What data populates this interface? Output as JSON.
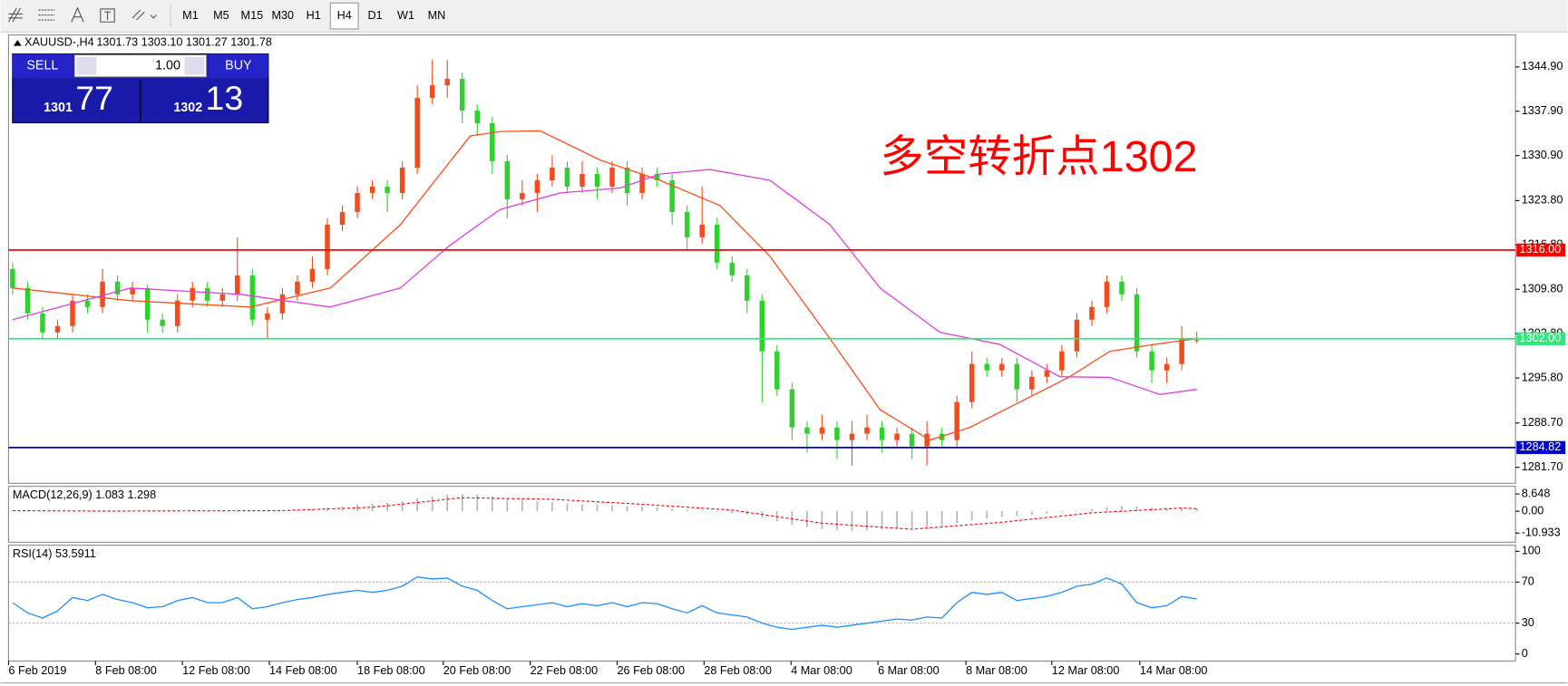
{
  "toolbar": {
    "timeframes": [
      "M1",
      "M5",
      "M15",
      "M30",
      "H1",
      "H4",
      "D1",
      "W1",
      "MN"
    ],
    "active_index": 5
  },
  "trade_panel": {
    "sell": "SELL",
    "lot": "1.00",
    "buy": "BUY",
    "bid_main": "1301",
    "bid_pips": "77",
    "ask_main": "1302",
    "ask_pips": "13"
  },
  "chart_data": [
    {
      "type": "candlestick",
      "title": "XAUUSD-,H4",
      "ohlc_text": "1301.73 1303.10 1301.27 1301.78",
      "annotation": "多空转折点1302",
      "xlim": [
        -0.27,
        100.13
      ],
      "xticks": [
        {
          "value": -0.27,
          "label": "6 Feb 2019"
        },
        {
          "value": 5.53,
          "label": "8 Feb 08:00"
        },
        {
          "value": 11.33,
          "label": "12 Feb 08:00"
        },
        {
          "value": 17.13,
          "label": "14 Feb 08:00"
        },
        {
          "value": 23,
          "label": "18 Feb 08:00"
        },
        {
          "value": 28.73,
          "label": "20 Feb 08:00"
        },
        {
          "value": 34.53,
          "label": "22 Feb 08:00"
        },
        {
          "value": 40.33,
          "label": "26 Feb 08:00"
        },
        {
          "value": 46.13,
          "label": "28 Feb 08:00"
        },
        {
          "value": 51.93,
          "label": "4 Mar 08:00"
        },
        {
          "value": 57.73,
          "label": "6 Mar 08:00"
        },
        {
          "value": 63.6,
          "label": "8 Mar 08:00"
        },
        {
          "value": 69.33,
          "label": "12 Mar 08:00"
        },
        {
          "value": 75.2,
          "label": "14 Mar 08:00"
        }
      ],
      "ylim": [
        1279.18,
        1349.94
      ],
      "yticks": [
        {
          "value": 1344.9,
          "label": "1344.90"
        },
        {
          "value": 1337.9,
          "label": "1337.90"
        },
        {
          "value": 1330.9,
          "label": "1330.90"
        },
        {
          "value": 1323.8,
          "label": "1323.80"
        },
        {
          "value": 1316.8,
          "label": "1316.80"
        },
        {
          "value": 1309.8,
          "label": "1309.80"
        },
        {
          "value": 1302.8,
          "label": "1302.80"
        },
        {
          "value": 1295.8,
          "label": "1295.80"
        },
        {
          "value": 1288.7,
          "label": "1288.70"
        },
        {
          "value": 1281.7,
          "label": "1281.70"
        }
      ],
      "up_color": "#f24b1c",
      "down_color": "#2fd12f",
      "candles": [
        [
          1313,
          1314,
          1309,
          1310
        ],
        [
          1310,
          1311,
          1305,
          1306
        ],
        [
          1306,
          1307,
          1302,
          1303
        ],
        [
          1303,
          1305,
          1302,
          1304
        ],
        [
          1304,
          1309,
          1303,
          1308
        ],
        [
          1308,
          1309,
          1306,
          1307
        ],
        [
          1307,
          1313,
          1306,
          1311
        ],
        [
          1311,
          1312,
          1308,
          1309
        ],
        [
          1309,
          1311,
          1308,
          1310
        ],
        [
          1310,
          1310.5,
          1303,
          1305
        ],
        [
          1305,
          1306,
          1303,
          1304
        ],
        [
          1304,
          1309,
          1303,
          1308
        ],
        [
          1308,
          1311,
          1307,
          1310
        ],
        [
          1310,
          1311,
          1307,
          1308
        ],
        [
          1308,
          1310,
          1307,
          1309
        ],
        [
          1309,
          1318,
          1308,
          1312
        ],
        [
          1312,
          1313,
          1304,
          1305
        ],
        [
          1305,
          1307,
          1302,
          1306
        ],
        [
          1306,
          1310,
          1305,
          1309
        ],
        [
          1309,
          1312,
          1308,
          1311
        ],
        [
          1311,
          1315,
          1310,
          1313
        ],
        [
          1313,
          1321,
          1312,
          1320
        ],
        [
          1320,
          1323,
          1319,
          1322
        ],
        [
          1322,
          1326,
          1321,
          1325
        ],
        [
          1325,
          1327,
          1324,
          1326
        ],
        [
          1326,
          1327,
          1322,
          1325
        ],
        [
          1325,
          1330,
          1324,
          1329
        ],
        [
          1329,
          1342,
          1328,
          1340
        ],
        [
          1340,
          1346,
          1339,
          1342
        ],
        [
          1342,
          1346,
          1340,
          1343
        ],
        [
          1343,
          1344,
          1336,
          1338
        ],
        [
          1338,
          1339,
          1334,
          1336
        ],
        [
          1336,
          1337,
          1328,
          1330
        ],
        [
          1330,
          1331,
          1321,
          1324
        ],
        [
          1324,
          1327,
          1323,
          1325
        ],
        [
          1325,
          1328,
          1322,
          1327
        ],
        [
          1327,
          1331,
          1326,
          1329
        ],
        [
          1329,
          1330,
          1325,
          1326
        ],
        [
          1326,
          1330,
          1325,
          1328
        ],
        [
          1328,
          1329,
          1324,
          1326
        ],
        [
          1326,
          1330,
          1325,
          1329
        ],
        [
          1329,
          1330,
          1323,
          1325
        ],
        [
          1325,
          1329,
          1324,
          1328
        ],
        [
          1328,
          1329,
          1326,
          1327
        ],
        [
          1327,
          1328,
          1320,
          1322
        ],
        [
          1322,
          1323,
          1316,
          1318
        ],
        [
          1318,
          1326,
          1317,
          1320
        ],
        [
          1320,
          1321,
          1313,
          1314
        ],
        [
          1314,
          1315,
          1311,
          1312
        ],
        [
          1312,
          1313,
          1306,
          1308
        ],
        [
          1308,
          1309,
          1292,
          1300
        ],
        [
          1300,
          1301,
          1293,
          1294
        ],
        [
          1294,
          1295,
          1286,
          1288
        ],
        [
          1288,
          1289,
          1284,
          1287
        ],
        [
          1287,
          1290,
          1286,
          1288
        ],
        [
          1288,
          1289,
          1283,
          1286
        ],
        [
          1286,
          1289,
          1282,
          1287
        ],
        [
          1287,
          1290,
          1286,
          1288
        ],
        [
          1288,
          1289,
          1284,
          1286
        ],
        [
          1286,
          1288,
          1285,
          1287
        ],
        [
          1287,
          1288,
          1283,
          1285
        ],
        [
          1285,
          1289,
          1282,
          1287
        ],
        [
          1287,
          1288,
          1285,
          1286
        ],
        [
          1286,
          1293,
          1285,
          1292
        ],
        [
          1292,
          1300,
          1291,
          1298
        ],
        [
          1298,
          1299,
          1296,
          1297
        ],
        [
          1297,
          1299,
          1296,
          1298
        ],
        [
          1298,
          1299,
          1292,
          1294
        ],
        [
          1294,
          1297,
          1293,
          1296
        ],
        [
          1296,
          1298,
          1295,
          1297
        ],
        [
          1297,
          1301,
          1296,
          1300
        ],
        [
          1300,
          1306,
          1299,
          1305
        ],
        [
          1305,
          1308,
          1304,
          1307
        ],
        [
          1307,
          1312,
          1306,
          1311
        ],
        [
          1311,
          1312,
          1308,
          1309
        ],
        [
          1309,
          1310,
          1299,
          1300
        ],
        [
          1300,
          1301,
          1295,
          1297
        ],
        [
          1297,
          1299,
          1295,
          1298
        ],
        [
          1298,
          1304,
          1297,
          1302
        ],
        [
          1301.73,
          1303.1,
          1301.27,
          1301.78
        ]
      ],
      "lines": [
        {
          "color": "#ff4f1a",
          "x": [
            0,
            7.87,
            15.87,
            21.2,
            25.87,
            30.53,
            32.53,
            35.2,
            39.2,
            43.2,
            47.2,
            50.53,
            54.53,
            57.87,
            61.2,
            63.87,
            67.2,
            70.53,
            73.2,
            75.87,
            79
          ],
          "values": [
            1310,
            1308,
            1307,
            1310,
            1320,
            1334,
            1334.7,
            1334.8,
            1330.2,
            1327,
            1323,
            1315,
            1302,
            1290.8,
            1286,
            1288,
            1292,
            1296,
            1300,
            1301,
            1302
          ]
        },
        {
          "color": "#e040e0",
          "x": [
            0,
            7.87,
            15.2,
            21.2,
            25.87,
            29.2,
            32.53,
            36.53,
            40.53,
            43.2,
            46.53,
            50.53,
            54.53,
            57.87,
            61.87,
            65.87,
            69.87,
            73.2,
            76.53,
            79
          ],
          "values": [
            1305,
            1310,
            1309,
            1307,
            1310,
            1316.8,
            1322.4,
            1325,
            1325.8,
            1328,
            1328.7,
            1327,
            1320,
            1310,
            1303,
            1301.1,
            1296,
            1295.9,
            1293.2,
            1294
          ]
        }
      ],
      "levels": [
        {
          "value": 1316,
          "label": "1316.00",
          "color": "#ff0000"
        },
        {
          "value": 1302,
          "label": "1302.00",
          "color": "#2ee87a"
        },
        {
          "value": 1284.82,
          "label": "1284.82",
          "color": "#0000cc"
        }
      ]
    },
    {
      "type": "macd",
      "title": "MACD(12,26,9) 1.083 1.298",
      "ylim": [
        -15.5,
        12.5
      ],
      "yticks": [
        8.648,
        {
          "value": 0,
          "label": "0.00"
        },
        -10.933
      ],
      "histogram": {
        "color": "#b4b4b4",
        "values": [
          0.5,
          0.3,
          -0.2,
          -0.3,
          0,
          0.1,
          0.3,
          0.3,
          0.4,
          0.2,
          0,
          0.1,
          0.3,
          0.3,
          0.4,
          0.6,
          0.3,
          0.2,
          0.4,
          0.7,
          1.0,
          1.8,
          2.5,
          3.3,
          3.9,
          4.3,
          5.0,
          6.5,
          7.5,
          8.3,
          8.5,
          8.4,
          7.6,
          6.5,
          5.6,
          5.0,
          4.6,
          4.0,
          3.6,
          3.2,
          3.0,
          2.6,
          2.4,
          2.1,
          1.5,
          0.8,
          0.5,
          -0.3,
          -1.0,
          -1.8,
          -3.2,
          -5.0,
          -6.8,
          -8.0,
          -8.9,
          -9.5,
          -9.8,
          -9.6,
          -9.3,
          -8.8,
          -8.4,
          -7.8,
          -7.2,
          -6.0,
          -4.6,
          -3.6,
          -2.8,
          -2.4,
          -1.8,
          -1.3,
          -0.7,
          0.3,
          1.1,
          2.2,
          2.7,
          2.6,
          2.0,
          1.6,
          1.3,
          1.083
        ]
      },
      "signal": {
        "color": "#ff0000",
        "x": [
          0,
          6,
          12,
          18,
          24,
          30,
          36,
          42,
          48,
          54,
          60,
          66,
          72,
          78,
          79
        ],
        "values": [
          0.3,
          0.1,
          0.2,
          0.3,
          2.0,
          6.8,
          6.0,
          3.5,
          0.6,
          -6,
          -9,
          -5.5,
          -0.8,
          1.6,
          1.298
        ]
      }
    },
    {
      "type": "line",
      "title": "RSI(14) 53.5911",
      "ylim": [
        -6.86,
        105.9
      ],
      "yticks": [
        100,
        70,
        30,
        0
      ],
      "levels": [
        70,
        30
      ],
      "series": [
        {
          "color": "#1e90ff",
          "values": [
            50,
            40,
            35,
            42,
            55,
            52,
            58,
            53,
            50,
            45,
            46,
            52,
            55,
            50,
            50,
            55,
            44,
            46,
            50,
            53,
            55,
            58,
            60,
            62,
            60,
            62,
            66,
            75,
            73,
            74,
            66,
            62,
            52,
            44,
            46,
            48,
            50,
            46,
            49,
            47,
            50,
            46,
            50,
            49,
            44,
            40,
            47,
            40,
            38,
            36,
            30,
            26,
            24,
            26,
            28,
            26,
            28,
            30,
            32,
            34,
            33,
            36,
            35,
            50,
            60,
            58,
            60,
            52,
            54,
            56,
            60,
            66,
            68,
            74,
            68,
            50,
            45,
            47,
            56,
            53.5911
          ]
        }
      ]
    }
  ]
}
